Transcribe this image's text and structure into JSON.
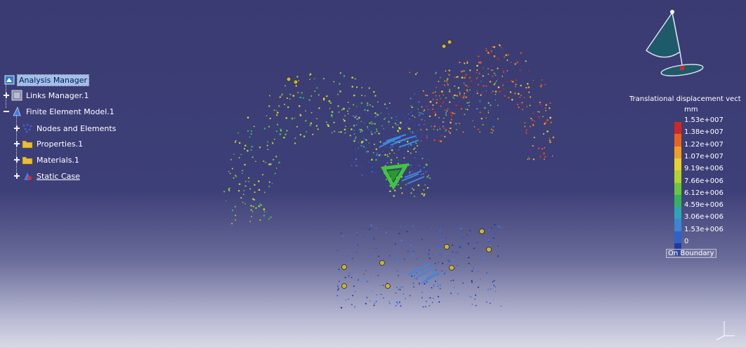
{
  "tree": {
    "items": [
      {
        "label": "Analysis Manager",
        "icon": "analysis-manager-icon"
      },
      {
        "label": "Links Manager.1",
        "icon": "links-manager-icon"
      },
      {
        "label": "Finite Element Model.1",
        "icon": "finite-element-model-icon"
      },
      {
        "label": "Nodes and Elements",
        "icon": "nodes-elements-icon"
      },
      {
        "label": "Properties.1",
        "icon": "folder-icon"
      },
      {
        "label": "Materials.1",
        "icon": "folder-icon"
      },
      {
        "label": "Static Case",
        "icon": "static-case-icon"
      }
    ]
  },
  "legend": {
    "title": "Translational displacement vect",
    "unit": "mm",
    "ticks": [
      "1.53e+007",
      "1.38e+007",
      "1.22e+007",
      "1.07e+007",
      "9.19e+006",
      "7.66e+006",
      "6.12e+006",
      "4.59e+006",
      "3.06e+006",
      "1.53e+006",
      "0"
    ],
    "band_colors": [
      "#d42525",
      "#e8641a",
      "#f0a01e",
      "#e6d22a",
      "#b4d22e",
      "#6cc63a",
      "#34b45a",
      "#2ca6b4",
      "#3c86d2",
      "#3062c8",
      "#24399a"
    ],
    "footer": "On Boundary"
  },
  "colors": {
    "background_top": "#3a3b72",
    "background_bottom": "#d8d9e6",
    "selection": "#9fc0ea",
    "compass_fill": "#1e5a6a",
    "constraint_marker": "#c8b43a",
    "load_marker": "#3cc83c"
  }
}
